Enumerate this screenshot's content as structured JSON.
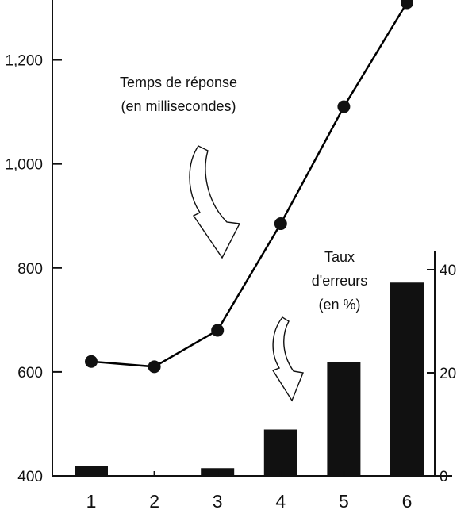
{
  "chart_data": {
    "type": "bar+line",
    "categories": [
      "1",
      "2",
      "3",
      "4",
      "5",
      "6"
    ],
    "series": [
      {
        "name": "Temps de réponse (en millisecondes)",
        "type": "line",
        "axis": "left",
        "values": [
          620,
          610,
          680,
          885,
          1110,
          1310
        ]
      },
      {
        "name": "Taux d'erreurs (en %)",
        "type": "bar",
        "axis": "right",
        "values": [
          2,
          0,
          1.5,
          9,
          22,
          37.5
        ]
      }
    ],
    "left_axis": {
      "ylim": [
        400,
        1300
      ],
      "ticks": [
        400,
        600,
        800,
        1000,
        1200
      ],
      "tick_labels": [
        "400",
        "600",
        "800",
        "1,000",
        "1,200"
      ]
    },
    "right_axis": {
      "ylim": [
        0,
        40
      ],
      "ticks": [
        0,
        20,
        40
      ],
      "tick_labels": [
        "0",
        "20",
        "40"
      ]
    },
    "annotations": {
      "line_label": [
        "Temps de réponse",
        "(en millisecondes)"
      ],
      "bar_label": [
        "Taux",
        "d'erreurs",
        "(en %)"
      ]
    },
    "colors": {
      "bar": "#111111",
      "line": "#000000",
      "marker": "#111111"
    },
    "grid": false
  }
}
